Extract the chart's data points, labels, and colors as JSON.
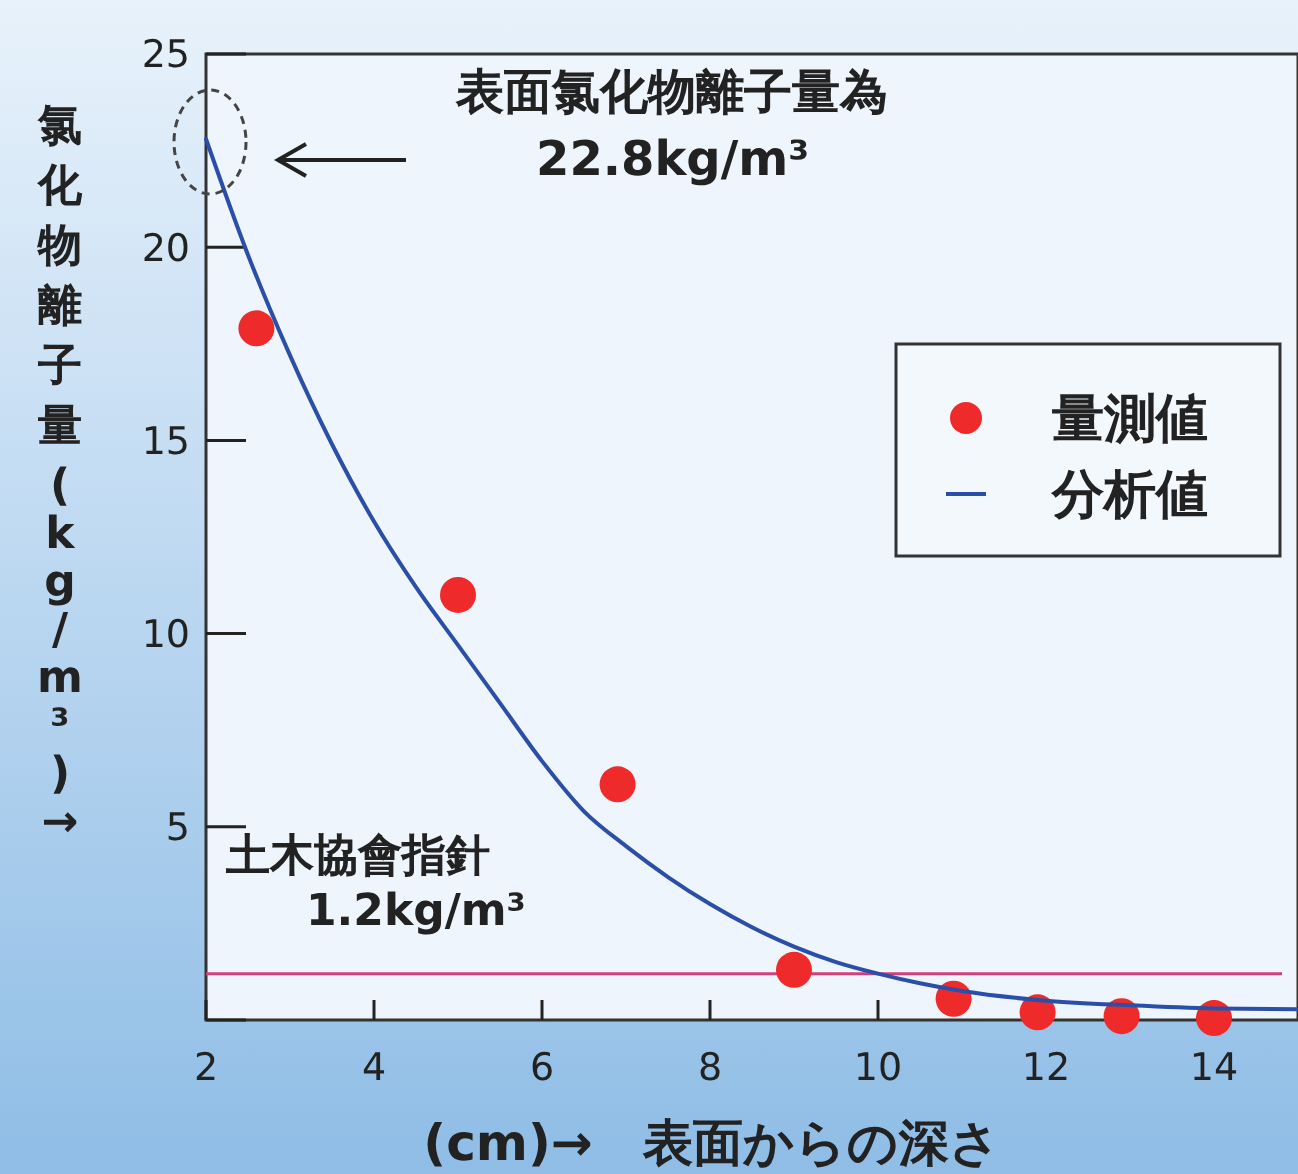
{
  "chart_data": {
    "type": "scatter",
    "xlabel": "(cm)→　表面からの深さ",
    "ylabel": "氯化物離子量 (kg/m³)→",
    "xlim": [
      2,
      15
    ],
    "ylim": [
      0,
      25
    ],
    "xticks": [
      2,
      4,
      6,
      8,
      10,
      12,
      14
    ],
    "yticks": [
      {
        "value": 0,
        "label": null
      },
      5,
      10,
      15,
      20,
      25
    ],
    "series": [
      {
        "name": "量測値",
        "color": "#ee2a2a",
        "marker": "circle",
        "x": [
          2.6,
          5.0,
          6.9,
          9.0,
          10.9,
          11.9,
          12.9,
          14.0
        ],
        "values": [
          17.9,
          11.0,
          6.1,
          1.3,
          0.55,
          0.2,
          0.1,
          0.05
        ]
      },
      {
        "name": "分析値",
        "type": "line",
        "color": "#2a4fa8",
        "marker": "none",
        "line_style": "solid",
        "x": [
          2,
          2.5,
          3,
          3.5,
          4,
          4.5,
          5,
          5.5,
          6,
          6.5,
          7,
          7.5,
          8,
          8.5,
          9,
          9.5,
          10,
          10.5,
          11,
          12,
          13,
          14,
          15
        ],
        "values": [
          22.8,
          19.8,
          17.2,
          14.9,
          12.9,
          11.2,
          9.7,
          8.2,
          6.7,
          5.4,
          4.5,
          3.7,
          3.0,
          2.4,
          1.9,
          1.5,
          1.2,
          0.95,
          0.75,
          0.5,
          0.38,
          0.3,
          0.28
        ]
      }
    ],
    "ref_lines": [
      {
        "axis": "y",
        "value": 1.2,
        "label": "土木協會指針\n1.2kg/m³",
        "color": "#d0407a"
      }
    ],
    "annotations": [
      "表面氯化物離子量為\n22.8kg/m³"
    ],
    "legend": "top right",
    "grid": false
  }
}
